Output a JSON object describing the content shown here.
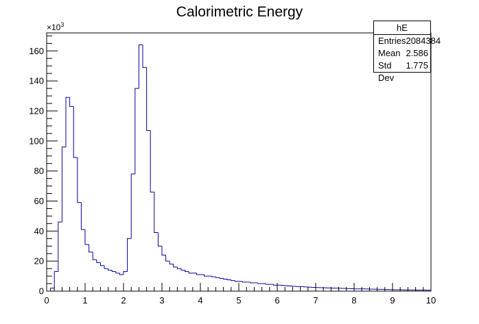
{
  "chart_data": {
    "type": "bar",
    "title": "Calorimetric Energy",
    "xlabel": "",
    "ylabel": "",
    "y_exponent_label": "×10",
    "y_exponent_power": "3",
    "xlim": [
      0,
      10
    ],
    "ylim": [
      0,
      172
    ],
    "x_ticks": [
      "0",
      "1",
      "2",
      "3",
      "4",
      "5",
      "6",
      "7",
      "8",
      "9",
      "10"
    ],
    "y_ticks": [
      "0",
      "20",
      "40",
      "60",
      "80",
      "100",
      "120",
      "140",
      "160"
    ],
    "bin_width": 0.1,
    "bin_edges_start": 0,
    "values": [
      0,
      2,
      13,
      46,
      96,
      129,
      123,
      89,
      59,
      41,
      31,
      26,
      21,
      19,
      17,
      15,
      14,
      13,
      12,
      11,
      13,
      35,
      78,
      135,
      164,
      149,
      107,
      66,
      39,
      30,
      24,
      20,
      18,
      16,
      15,
      14,
      13,
      12,
      12,
      11,
      11,
      10,
      10,
      9.5,
      9,
      8.5,
      8,
      7.5,
      7,
      6.5,
      6.5,
      6,
      6,
      5.5,
      5.5,
      5,
      5,
      4.5,
      4.5,
      4,
      4,
      3.8,
      3.6,
      3.4,
      3.2,
      3,
      3,
      2.8,
      2.6,
      2.5,
      2.4,
      2.3,
      2.2,
      2.1,
      2,
      2,
      1.9,
      1.8,
      1.7,
      1.6,
      1.5,
      1.5,
      1.5,
      1.4,
      1.3,
      1.3,
      1.2,
      1.2,
      1.1,
      1.0,
      0.9,
      0.9,
      0.9,
      0.8,
      0.8,
      0.8,
      0.7,
      0.7,
      0.7,
      0.6
    ],
    "line_color": "#000099",
    "grid": false,
    "stats_box": {
      "title": "hE",
      "rows": [
        {
          "label": "Entries",
          "value": "2084384"
        },
        {
          "label": "Mean",
          "value": "2.586"
        },
        {
          "label": "Std Dev",
          "value": "1.775"
        }
      ]
    }
  }
}
